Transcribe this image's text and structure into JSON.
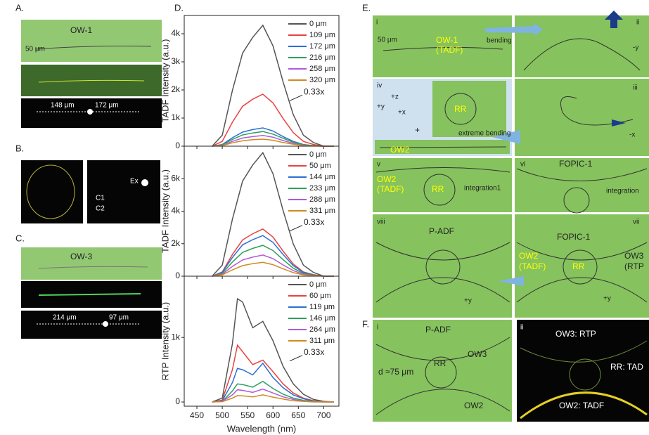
{
  "chart_data": [
    {
      "type": "line",
      "ylabel": "TADF Intensity (a.u.)",
      "annotation": "0.33x",
      "xlim": [
        425,
        730
      ],
      "ylim": [
        0,
        4650
      ],
      "xticks": [
        450,
        500,
        550,
        600,
        650,
        700
      ],
      "yticks": [
        0,
        {
          "value": 1000,
          "label": "1k"
        },
        {
          "value": 2000,
          "label": "2k"
        },
        {
          "value": 3000,
          "label": "3k"
        },
        {
          "value": 4000,
          "label": "4k"
        }
      ],
      "x": [
        480,
        500,
        520,
        540,
        560,
        580,
        600,
        620,
        640,
        660,
        680,
        700,
        720
      ],
      "series": [
        {
          "name": "0 μm",
          "color": "#555555",
          "values": [
            0,
            390,
            1980,
            3310,
            3870,
            4300,
            3570,
            2280,
            1120,
            390,
            130,
            0,
            0
          ]
        },
        {
          "name": "109 μm",
          "color": "#e8423f",
          "values": [
            0,
            170,
            850,
            1420,
            1670,
            1850,
            1540,
            980,
            480,
            170,
            60,
            0,
            0
          ]
        },
        {
          "name": "172 μm",
          "color": "#2a6fd6",
          "values": [
            0,
            60,
            300,
            500,
            590,
            650,
            540,
            340,
            170,
            60,
            20,
            0,
            0
          ]
        },
        {
          "name": "216 μm",
          "color": "#2ca05a",
          "values": [
            0,
            50,
            240,
            400,
            470,
            520,
            430,
            280,
            140,
            50,
            20,
            0,
            0
          ]
        },
        {
          "name": "258 μm",
          "color": "#b05ad9",
          "values": [
            0,
            30,
            170,
            290,
            340,
            380,
            320,
            200,
            100,
            30,
            10,
            0,
            0
          ]
        },
        {
          "name": "320 μm",
          "color": "#d18a1f",
          "values": [
            0,
            20,
            120,
            190,
            230,
            250,
            210,
            130,
            70,
            20,
            10,
            0,
            0
          ]
        }
      ]
    },
    {
      "type": "line",
      "ylabel": "TADF Intensity (a.u.)",
      "annotation": "0.33x",
      "xlim": [
        425,
        730
      ],
      "ylim": [
        0,
        8000
      ],
      "xticks": [
        450,
        500,
        550,
        600,
        650,
        700
      ],
      "yticks": [
        0,
        {
          "value": 2000,
          "label": "2k"
        },
        {
          "value": 4000,
          "label": "4k"
        },
        {
          "value": 6000,
          "label": "6k"
        }
      ],
      "x": [
        480,
        500,
        520,
        540,
        560,
        580,
        600,
        620,
        640,
        660,
        680,
        700,
        720
      ],
      "series": [
        {
          "name": "0 μm",
          "color": "#555555",
          "values": [
            0,
            680,
            3500,
            5850,
            6840,
            7600,
            6310,
            4030,
            1980,
            680,
            230,
            0,
            0
          ]
        },
        {
          "name": "50 μm",
          "color": "#e8423f",
          "values": [
            0,
            260,
            1330,
            2230,
            2610,
            2900,
            2410,
            1540,
            750,
            260,
            90,
            0,
            0
          ]
        },
        {
          "name": "144 μm",
          "color": "#2a6fd6",
          "values": [
            0,
            230,
            1150,
            1930,
            2250,
            2500,
            2080,
            1330,
            650,
            230,
            80,
            0,
            0
          ]
        },
        {
          "name": "233 μm",
          "color": "#2ca05a",
          "values": [
            0,
            170,
            870,
            1460,
            1710,
            1900,
            1580,
            1010,
            490,
            170,
            60,
            0,
            0
          ]
        },
        {
          "name": "288 μm",
          "color": "#b05ad9",
          "values": [
            0,
            120,
            600,
            1000,
            1170,
            1300,
            1080,
            690,
            340,
            120,
            40,
            0,
            0
          ]
        },
        {
          "name": "331 μm",
          "color": "#d18a1f",
          "values": [
            0,
            80,
            390,
            650,
            770,
            850,
            710,
            450,
            220,
            80,
            30,
            0,
            0
          ]
        }
      ]
    },
    {
      "type": "line",
      "ylabel": "RTP Intensity (a.u.)",
      "xlabel": "Wavelength (nm)",
      "annotation": "0.33x",
      "xlim": [
        425,
        730
      ],
      "ylim": [
        -65,
        1950
      ],
      "xticks": [
        450,
        500,
        550,
        600,
        650,
        700
      ],
      "yticks": [
        0,
        {
          "value": 1000,
          "label": "1k"
        }
      ],
      "x": [
        480,
        500,
        520,
        530,
        540,
        560,
        580,
        600,
        620,
        640,
        660,
        680,
        700,
        720
      ],
      "series": [
        {
          "name": "0 μm",
          "color": "#555555",
          "values": [
            0,
            60,
            900,
            1600,
            1550,
            1150,
            1250,
            950,
            550,
            280,
            120,
            40,
            10,
            0
          ]
        },
        {
          "name": "60 μm",
          "color": "#e8423f",
          "values": [
            0,
            30,
            500,
            880,
            780,
            580,
            650,
            470,
            280,
            140,
            60,
            20,
            5,
            0
          ]
        },
        {
          "name": "119 μm",
          "color": "#2a6fd6",
          "values": [
            0,
            20,
            300,
            520,
            500,
            420,
            600,
            380,
            220,
            110,
            50,
            15,
            5,
            0
          ]
        },
        {
          "name": "146 μm",
          "color": "#2ca05a",
          "values": [
            0,
            10,
            170,
            280,
            270,
            230,
            320,
            210,
            120,
            60,
            25,
            10,
            0,
            0
          ]
        },
        {
          "name": "264 μm",
          "color": "#b05ad9",
          "values": [
            0,
            10,
            110,
            190,
            180,
            150,
            200,
            140,
            80,
            40,
            15,
            5,
            0,
            0
          ]
        },
        {
          "name": "311 μm",
          "color": "#d18a1f",
          "values": [
            0,
            5,
            60,
            100,
            95,
            80,
            110,
            75,
            45,
            20,
            10,
            0,
            0,
            0
          ]
        }
      ]
    }
  ],
  "panels": {
    "A": {
      "label": "A.",
      "name": "OW-1",
      "scale": "50 μm",
      "d1": "148 μm",
      "d2": "172 μm"
    },
    "B": {
      "label": "B.",
      "ex": "Ex",
      "c1": "C1",
      "c2": "C2"
    },
    "C": {
      "label": "C.",
      "name": "OW-3",
      "d1": "214 μm",
      "d2": "97 μm"
    },
    "D": {
      "label": "D."
    },
    "E": {
      "label": "E.",
      "i": {
        "num": "i",
        "scale": "50 μm",
        "name": "OW-1",
        "sub": "(TADF)",
        "action": "bending"
      },
      "ii": {
        "num": "ii",
        "dir": "-y"
      },
      "iii": {
        "num": "iii",
        "dir": "-x"
      },
      "iv": {
        "num": "iv",
        "z": "+z",
        "y": "+y",
        "x": "+x",
        "rr": "RR",
        "action": "extreme bending",
        "plus": "+",
        "ow": "OW2"
      },
      "v": {
        "num": "v",
        "ow": "OW2",
        "sub": "(TADF)",
        "rr": "RR",
        "action": "integration1"
      },
      "vi": {
        "num": "vi",
        "name": "FOPIC-1",
        "action": "integration"
      },
      "vii": {
        "num": "vii",
        "name": "FOPIC-1",
        "ow2": "OW2",
        "sub2": "(TADF)",
        "rr": "RR",
        "ow3": "OW3",
        "sub3": "(RTP",
        "dir": "+y"
      },
      "viii": {
        "num": "viii",
        "name": "P-ADF",
        "dir": "+y"
      }
    },
    "F": {
      "label": "F.",
      "i": {
        "num": "i",
        "name": "P-ADF",
        "ow3": "OW3",
        "d": "d ≈75 μm",
        "rr": "RR",
        "ow2": "OW2"
      },
      "ii": {
        "num": "ii",
        "ow3": "OW3: RTP",
        "rr": "RR: TAD",
        "ow2": "OW2: TADF"
      }
    }
  }
}
